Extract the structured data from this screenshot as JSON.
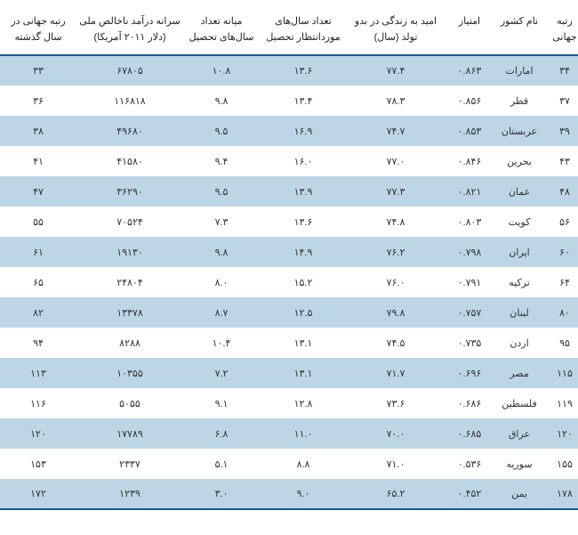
{
  "table": {
    "columns": [
      {
        "key": "c0",
        "label": "رتبه جهانی"
      },
      {
        "key": "c1",
        "label": "نام کشور"
      },
      {
        "key": "c2",
        "label": "امتیاز"
      },
      {
        "key": "c3",
        "label": "امید به زندگی در بدو تولد (سال)"
      },
      {
        "key": "c4",
        "label": "تعداد سال‌های موردانتظار تحصیل"
      },
      {
        "key": "c5",
        "label": "میانه تعداد سال‌های تحصیل"
      },
      {
        "key": "c6",
        "label": "سرانه درآمد ناخالص ملی (دلار ۲۰۱۱ آمریکا)"
      },
      {
        "key": "c7",
        "label": "رتبه جهانی در سال گذشته"
      }
    ],
    "rows": [
      {
        "c0": "۳۴",
        "c1": "امارات",
        "c2": "۰.۸۶۳",
        "c3": "۷۷.۴",
        "c4": "۱۳.۶",
        "c5": "۱۰.۸",
        "c6": "۶۷۸۰۵",
        "c7": "۳۳"
      },
      {
        "c0": "۳۷",
        "c1": "قطر",
        "c2": "۰.۸۵۶",
        "c3": "۷۸.۳",
        "c4": "۱۳.۴",
        "c5": "۹.۸",
        "c6": "۱۱۶۸۱۸",
        "c7": "۳۶"
      },
      {
        "c0": "۳۹",
        "c1": "عربستان",
        "c2": "۰.۸۵۳",
        "c3": "۷۴.۷",
        "c4": "۱۶.۹",
        "c5": "۹.۵",
        "c6": "۴۹۶۸۰",
        "c7": "۳۸"
      },
      {
        "c0": "۴۳",
        "c1": "بحرین",
        "c2": "۰.۸۴۶",
        "c3": "۷۷.۰",
        "c4": "۱۶.۰",
        "c5": "۹.۴",
        "c6": "۴۱۵۸۰",
        "c7": "۴۱"
      },
      {
        "c0": "۴۸",
        "c1": "عمان",
        "c2": "۰.۸۲۱",
        "c3": "۷۷.۳",
        "c4": "۱۳.۹",
        "c5": "۹.۵",
        "c6": "۳۶۲۹۰",
        "c7": "۴۷"
      },
      {
        "c0": "۵۶",
        "c1": "کویت",
        "c2": "۰.۸۰۳",
        "c3": "۷۴.۸",
        "c4": "۱۳.۶",
        "c5": "۷.۳",
        "c6": "۷۰۵۲۴",
        "c7": "۵۵"
      },
      {
        "c0": "۶۰",
        "c1": "ایران",
        "c2": "۰.۷۹۸",
        "c3": "۷۶.۲",
        "c4": "۱۴.۹",
        "c5": "۹.۸",
        "c6": "۱۹۱۳۰",
        "c7": "۶۱"
      },
      {
        "c0": "۶۴",
        "c1": "ترکیه",
        "c2": "۰.۷۹۱",
        "c3": "۷۶.۰",
        "c4": "۱۵.۲",
        "c5": "۸.۰",
        "c6": "۲۴۸۰۴",
        "c7": "۶۵"
      },
      {
        "c0": "۸۰",
        "c1": "لبنان",
        "c2": "۰.۷۵۷",
        "c3": "۷۹.۸",
        "c4": "۱۲.۵",
        "c5": "۸.۷",
        "c6": "۱۳۳۷۸",
        "c7": "۸۲"
      },
      {
        "c0": "۹۵",
        "c1": "اردن",
        "c2": "۰.۷۳۵",
        "c3": "۷۴.۵",
        "c4": "۱۳.۱",
        "c5": "۱۰.۴",
        "c6": "۸۲۸۸",
        "c7": "۹۴"
      },
      {
        "c0": "۱۱۵",
        "c1": "مصر",
        "c2": "۰.۶۹۶",
        "c3": "۷۱.۷",
        "c4": "۱۳.۱",
        "c5": "۷.۲",
        "c6": "۱۰۳۵۵",
        "c7": "۱۱۳"
      },
      {
        "c0": "۱۱۹",
        "c1": "فلسطین",
        "c2": "۰.۶۸۶",
        "c3": "۷۳.۶",
        "c4": "۱۲.۸",
        "c5": "۹.۱",
        "c6": "۵۰۵۵",
        "c7": "۱۱۶"
      },
      {
        "c0": "۱۲۰",
        "c1": "عراق",
        "c2": "۰.۶۸۵",
        "c3": "۷۰.۰",
        "c4": "۱۱.۰",
        "c5": "۶.۸",
        "c6": "۱۷۷۸۹",
        "c7": "۱۲۰"
      },
      {
        "c0": "۱۵۵",
        "c1": "سوریه",
        "c2": "۰.۵۳۶",
        "c3": "۷۱.۰",
        "c4": "۸.۸",
        "c5": "۵.۱",
        "c6": "۲۳۳۷",
        "c7": "۱۵۳"
      },
      {
        "c0": "۱۷۸",
        "c1": "یمن",
        "c2": "۰.۴۵۲",
        "c3": "۶۵.۲",
        "c4": "۹.۰",
        "c5": "۳.۰",
        "c6": "۱۲۳۹",
        "c7": "۱۷۲"
      }
    ],
    "header_border_color": "#1a5a8a",
    "footer_border_color": "#1a5a8a",
    "row_odd_bg": "#bdd6e6",
    "row_even_bg": "#ffffff",
    "font_size_header": 11,
    "font_size_body": 11,
    "text_color": "#333333",
    "background_color": "#ffffff"
  }
}
